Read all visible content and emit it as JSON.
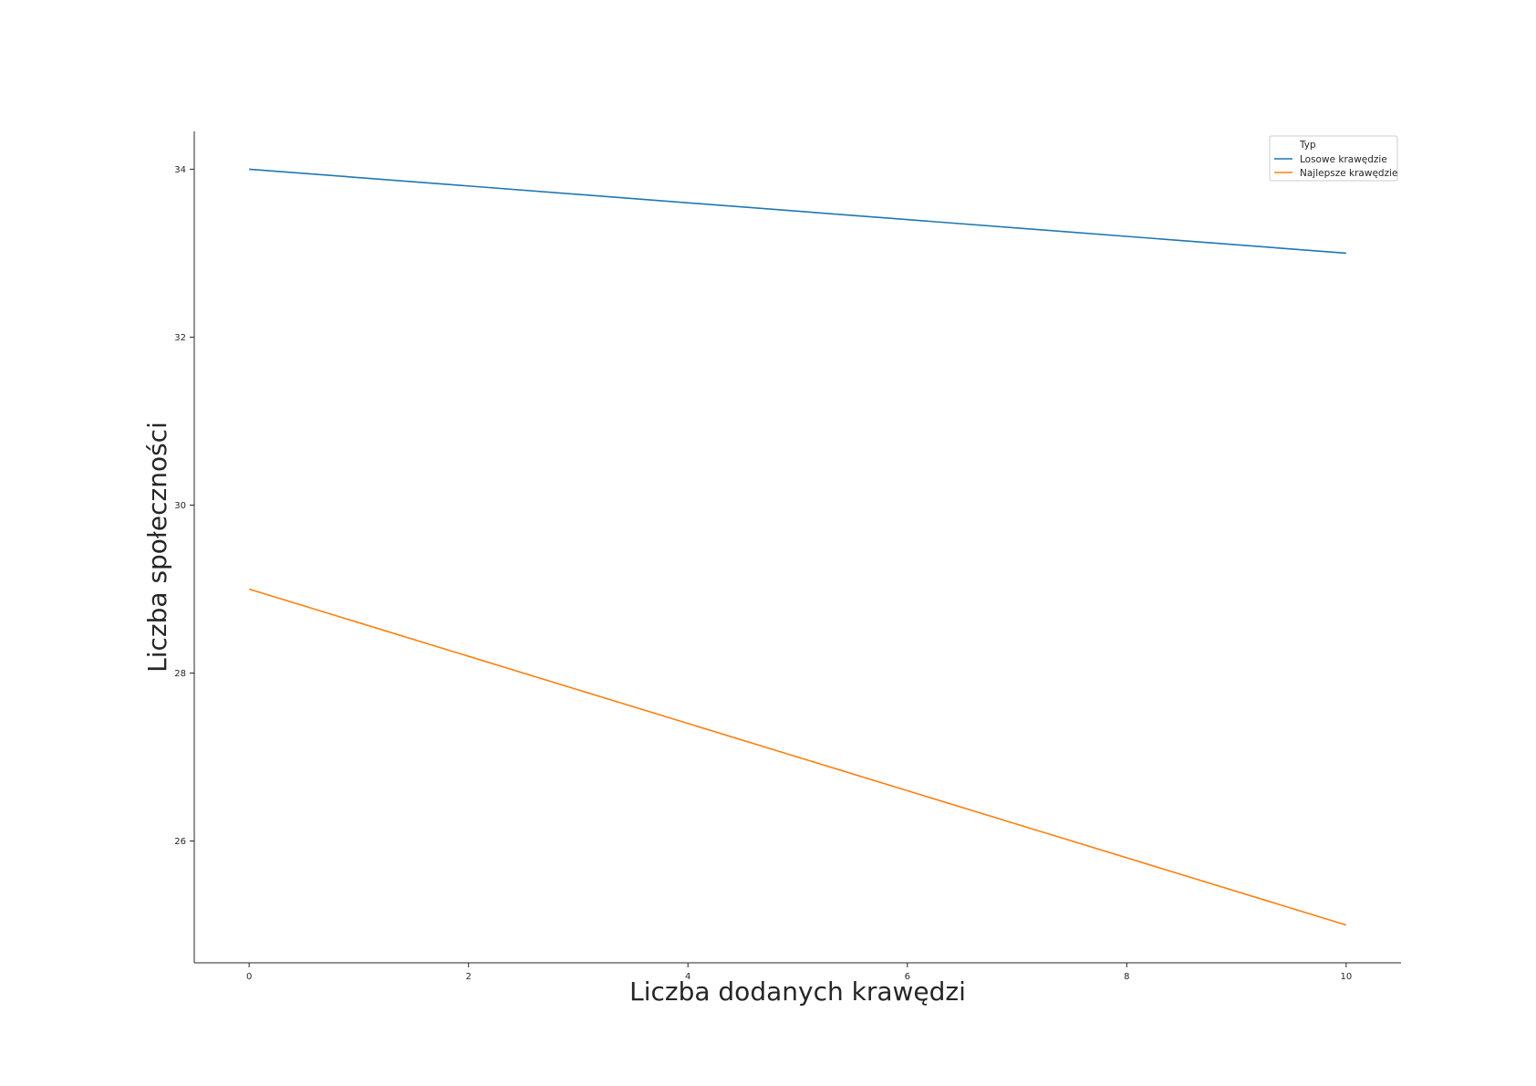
{
  "chart_data": {
    "type": "line",
    "title": "",
    "xlabel": "Liczba dodanych krawędzi",
    "ylabel": "Liczba społeczności",
    "xlim": [
      -0.5,
      10.5
    ],
    "ylim": [
      24.55,
      34.45
    ],
    "xticks": [
      0,
      2,
      4,
      6,
      8,
      10
    ],
    "yticks": [
      26,
      28,
      30,
      32,
      34
    ],
    "grid": false,
    "legend": {
      "title": "Typ",
      "placement": "top-right"
    },
    "series": [
      {
        "name": "Losowe krawędzie",
        "color": "#1f77b4",
        "x": [
          0,
          10
        ],
        "y": [
          34,
          33
        ]
      },
      {
        "name": "Najlepsze krawędzie",
        "color": "#ff7f0e",
        "x": [
          0,
          10
        ],
        "y": [
          29,
          25
        ]
      }
    ]
  }
}
